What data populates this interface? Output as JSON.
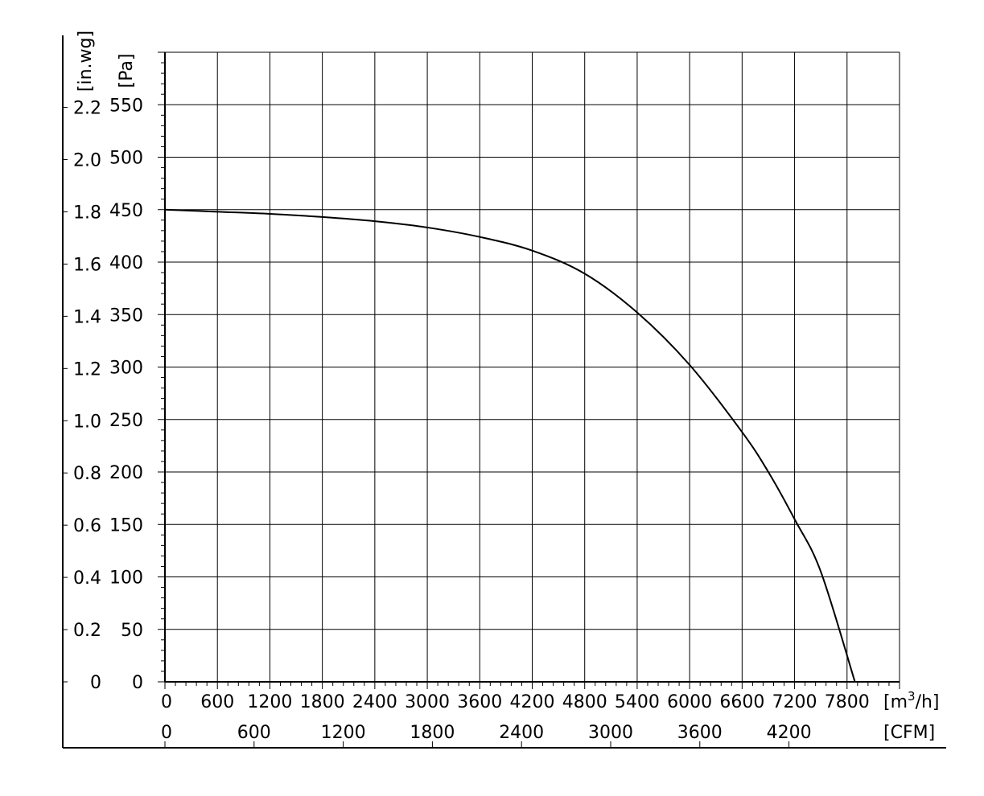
{
  "chart_data": {
    "type": "line",
    "title": "",
    "x_primary": {
      "unit_label": "[m³/h]",
      "unit_base": "[m",
      "unit_sup": "3",
      "unit_tail": "/h]",
      "range": [
        0,
        8400
      ],
      "ticks": [
        "0",
        "600",
        "1200",
        "1800",
        "2400",
        "3000",
        "3600",
        "4200",
        "4800",
        "5400",
        "6000",
        "6600",
        "7200",
        "7800"
      ]
    },
    "x_secondary": {
      "unit_label": "[CFM]",
      "ticks": [
        "0",
        "600",
        "1200",
        "1800",
        "2400",
        "3000",
        "3600",
        "4200"
      ]
    },
    "y_primary": {
      "unit_label": "[Pa]",
      "range": [
        0,
        600
      ],
      "ticks": [
        "0",
        "50",
        "100",
        "150",
        "200",
        "250",
        "300",
        "350",
        "400",
        "450",
        "500",
        "550"
      ]
    },
    "y_secondary": {
      "unit_label": "[in.wg]",
      "ticks": [
        "0",
        "0.2",
        "0.4",
        "0.6",
        "0.8",
        "1.0",
        "1.2",
        "1.4",
        "1.6",
        "1.8",
        "2.0",
        "2.2"
      ]
    },
    "grid": true,
    "series": [
      {
        "x": [
          0,
          600,
          1200,
          1800,
          2400,
          3000,
          3600,
          4200,
          4800,
          5400,
          6000,
          6600,
          6900,
          7200,
          7500,
          7890
        ],
        "y": [
          450,
          448,
          446,
          443,
          439,
          433,
          424,
          411,
          389,
          352,
          302,
          238,
          200,
          155,
          105,
          0
        ]
      }
    ]
  }
}
